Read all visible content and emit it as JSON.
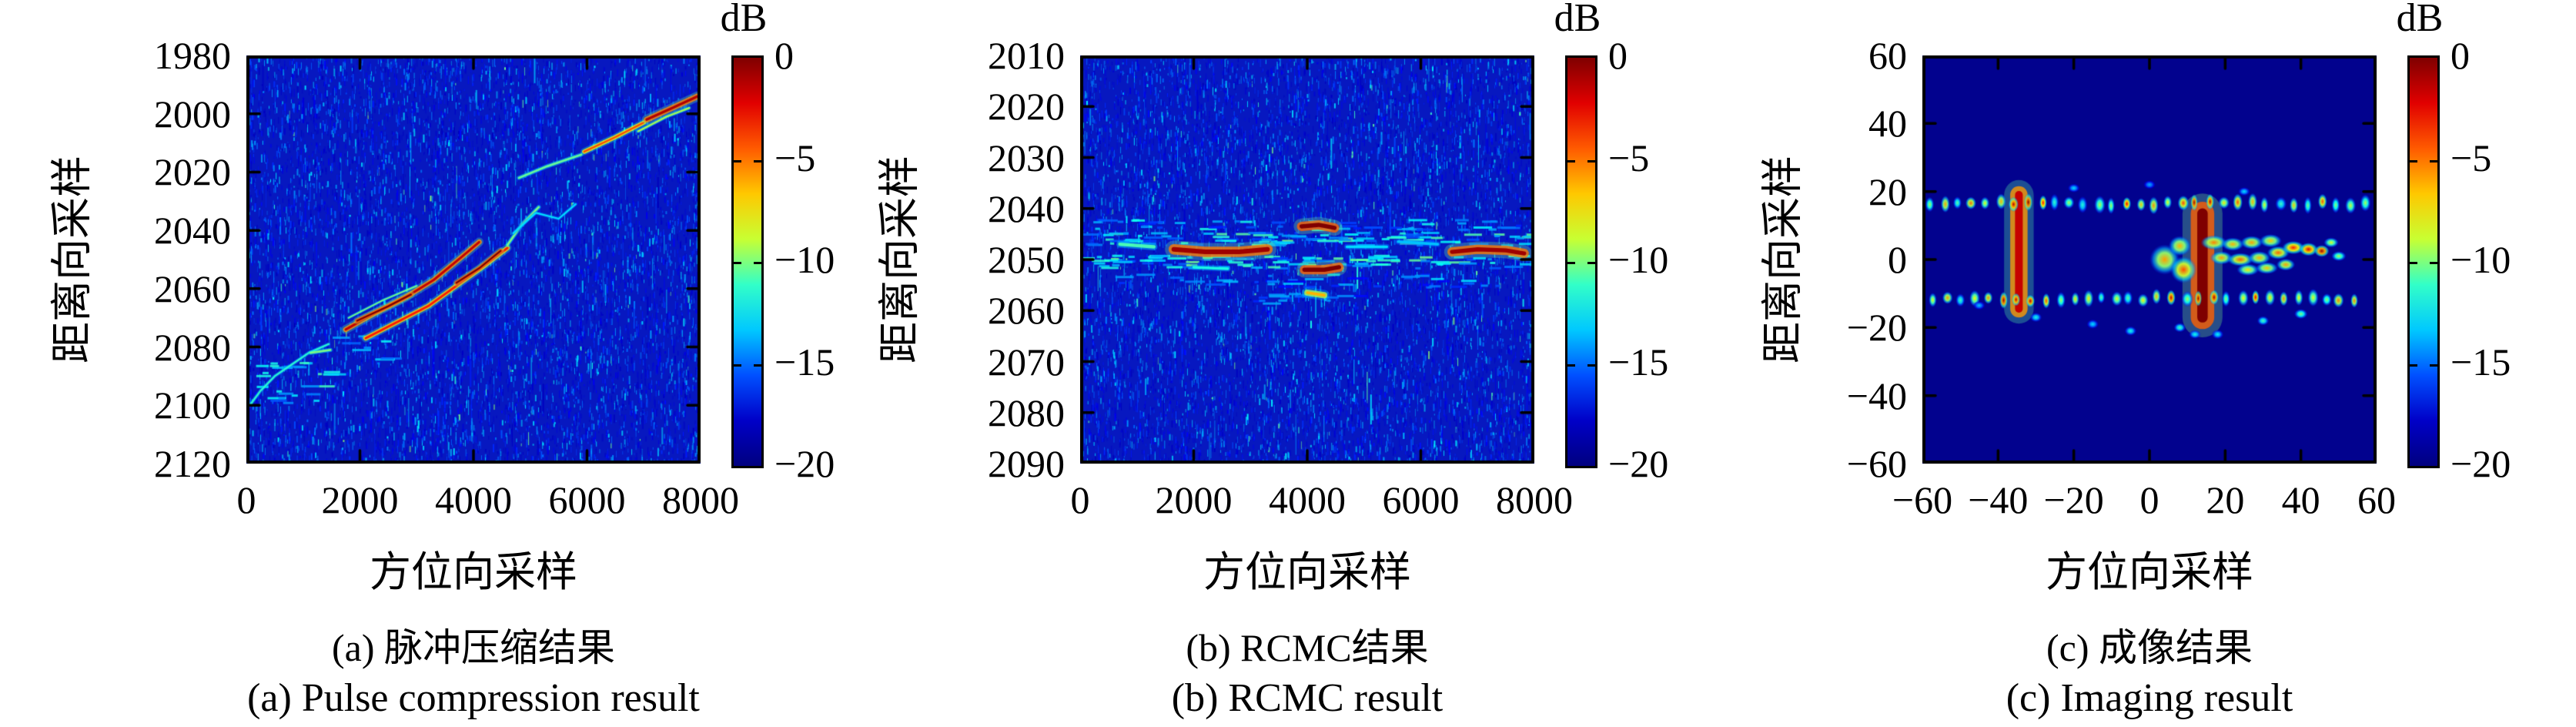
{
  "figure": {
    "type": "sar-processing-results-figure",
    "background": "#ffffff",
    "colorbar": {
      "title": "dB",
      "tick_labels": [
        "0",
        "−5",
        "−10",
        "−15",
        "−20"
      ],
      "range_db": [
        -20,
        0
      ],
      "gradient": [
        "#7f0000",
        "#e10000",
        "#ff5a00",
        "#ffc800",
        "#c8ff32",
        "#32ffc8",
        "#00c8ff",
        "#0050ff",
        "#0000c8",
        "#00007f"
      ]
    }
  },
  "chart_data": [
    {
      "type": "heatmap",
      "panel": "a",
      "title_cn": "(a) 脉冲压缩结果",
      "title_en": "(a) Pulse compression result",
      "xlabel": "方位向采样",
      "ylabel": "距离向采样",
      "x_ticks": [
        0,
        2000,
        4000,
        6000,
        8000
      ],
      "y_ticks": [
        1980,
        2000,
        2020,
        2040,
        2060,
        2080,
        2100,
        2120
      ],
      "x_range": [
        0,
        8000
      ],
      "y_range": [
        1980,
        2120
      ],
      "y_axis_direction": "reversed",
      "colorbar_range_db": [
        -20,
        0
      ],
      "description": "Noisy blue background; bright curved target range-migration trace rising from (≈150, 2103) at bottom-left to (≈7950, 1994) at top-right, with bright red S-shaped wiggle near azimuth 1800-4600 around range 2044-2076 and a bright orange end segment near azimuth 7000-7950.",
      "render": {
        "background": "noise",
        "base_color": "#0718c0",
        "seed": 7,
        "noise_count": 10000,
        "dashes": [
          {
            "seed": 5,
            "n": 26,
            "x0": 60,
            "x1": 1500,
            "y": 2092,
            "yjit": 14,
            "i": [
              0.2,
              0.45
            ],
            "h": 3
          },
          {
            "seed": 6,
            "n": 10,
            "x0": 1500,
            "x1": 2400,
            "y": 2080,
            "yjit": 8,
            "i": [
              0.18,
              0.4
            ],
            "h": 3
          }
        ],
        "streaks": [
          {
            "pts": [
              [
                60,
                2100
              ],
              [
                250,
                2095
              ],
              [
                500,
                2090
              ],
              [
                800,
                2086
              ],
              [
                1100,
                2082
              ],
              [
                1450,
                2079
              ]
            ],
            "w": 2.5,
            "i": 0.42
          },
          {
            "pts": [
              [
                1130,
                2082
              ],
              [
                1480,
                2081
              ]
            ],
            "w": 3,
            "i": 0.5
          },
          {
            "pts": [
              [
                1750,
                2074
              ],
              [
                2300,
                2068
              ],
              [
                2800,
                2063
              ],
              [
                3300,
                2057
              ],
              [
                3800,
                2049
              ],
              [
                4100,
                2044
              ]
            ],
            "w": 5,
            "i": 0.93
          },
          {
            "pts": [
              [
                1950,
                2071
              ],
              [
                2500,
                2066
              ],
              [
                2900,
                2062
              ]
            ],
            "w": 4,
            "i": 1.0
          },
          {
            "pts": [
              [
                2100,
                2077
              ],
              [
                2700,
                2071
              ],
              [
                3200,
                2066
              ],
              [
                3700,
                2059
              ],
              [
                4200,
                2052
              ],
              [
                4600,
                2046
              ]
            ],
            "w": 4.5,
            "i": 0.85
          },
          {
            "pts": [
              [
                3700,
                2058
              ],
              [
                4100,
                2053
              ],
              [
                4480,
                2047
              ]
            ],
            "w": 4,
            "i": 1.0
          },
          {
            "pts": [
              [
                1800,
                2070
              ],
              [
                2400,
                2064
              ],
              [
                3000,
                2059
              ]
            ],
            "w": 2,
            "i": 0.5
          },
          {
            "pts": [
              [
                4600,
                2045
              ],
              [
                4850,
                2038
              ],
              [
                5150,
                2032
              ]
            ],
            "w": 3,
            "i": 0.5
          },
          {
            "pts": [
              [
                4700,
                2041
              ],
              [
                5100,
                2034
              ],
              [
                5500,
                2036
              ],
              [
                5800,
                2031
              ]
            ],
            "w": 2.5,
            "i": 0.35
          },
          {
            "pts": [
              [
                4800,
                2022
              ],
              [
                5300,
                2018
              ],
              [
                5900,
                2014
              ]
            ],
            "w": 3,
            "i": 0.48
          },
          {
            "pts": [
              [
                5950,
                2013
              ],
              [
                6500,
                2008
              ],
              [
                7000,
                2003
              ]
            ],
            "w": 4,
            "i": 0.8
          },
          {
            "pts": [
              [
                7050,
                2002
              ],
              [
                7500,
                1998
              ],
              [
                7950,
                1994
              ]
            ],
            "w": 5.5,
            "i": 0.95
          },
          {
            "pts": [
              [
                6900,
                2006
              ],
              [
                7400,
                2001
              ],
              [
                7800,
                1998
              ]
            ],
            "w": 2.5,
            "i": 0.55
          }
        ]
      }
    },
    {
      "type": "heatmap",
      "panel": "b",
      "title_cn": "(b) RCMC结果",
      "title_en": "(b) RCMC result",
      "xlabel": "方位向采样",
      "ylabel": "距离向采样",
      "x_ticks": [
        0,
        2000,
        4000,
        6000,
        8000
      ],
      "y_ticks": [
        2010,
        2020,
        2030,
        2040,
        2050,
        2060,
        2070,
        2080,
        2090
      ],
      "x_range": [
        0,
        8000
      ],
      "y_range": [
        2010,
        2090
      ],
      "y_axis_direction": "reversed",
      "colorbar_range_db": [
        -20,
        0
      ],
      "description": "Noisy blue background; target energy flattened into a horizontal band around range 2043-2057 with bright red segments near azimuth 1650-3300 (range 2048), a pair near 3900-4560 (ranges 2043.5 and 2052) and 6550-7820 (range 2048.5), plus scattered cyan dashes across the band.",
      "render": {
        "background": "noise",
        "base_color": "#0718c0",
        "seed": 17,
        "noise_count": 10000,
        "dashes": [
          {
            "seed": 11,
            "n": 110,
            "x0": 0,
            "x1": 8000,
            "y": 2045.8,
            "yjit": 2.5,
            "i": [
              0.18,
              0.5
            ],
            "h": 3
          },
          {
            "seed": 12,
            "n": 110,
            "x0": 0,
            "x1": 8000,
            "y": 2050.3,
            "yjit": 2.5,
            "i": [
              0.18,
              0.5
            ],
            "h": 3
          },
          {
            "seed": 13,
            "n": 55,
            "x0": 0,
            "x1": 8000,
            "y": 2043,
            "yjit": 2,
            "i": [
              0.15,
              0.4
            ],
            "h": 3
          },
          {
            "seed": 14,
            "n": 40,
            "x0": 300,
            "x1": 7800,
            "y": 2054,
            "yjit": 2.5,
            "i": [
              0.12,
              0.35
            ],
            "h": 3
          },
          {
            "seed": 15,
            "n": 16,
            "x0": 3000,
            "x1": 5200,
            "y": 2057.5,
            "yjit": 2,
            "i": [
              0.12,
              0.3
            ],
            "h": 3
          }
        ],
        "streaks": [
          {
            "pts": [
              [
                1650,
                2048
              ],
              [
                2200,
                2048.5
              ],
              [
                2800,
                2048.5
              ],
              [
                3300,
                2048
              ]
            ],
            "w": 10,
            "i": 0.97
          },
          {
            "pts": [
              [
                3900,
                2043.5
              ],
              [
                4200,
                2043.2
              ],
              [
                4480,
                2043.8
              ]
            ],
            "w": 9,
            "i": 1.0
          },
          {
            "pts": [
              [
                3950,
                2052
              ],
              [
                4300,
                2052
              ],
              [
                4560,
                2051.5
              ]
            ],
            "w": 9,
            "i": 1.0
          },
          {
            "pts": [
              [
                6550,
                2048.5
              ],
              [
                7000,
                2048
              ],
              [
                7500,
                2048.2
              ],
              [
                7820,
                2048.8
              ]
            ],
            "w": 9,
            "i": 0.97
          },
          {
            "pts": [
              [
                700,
                2047
              ],
              [
                1300,
                2047.5
              ]
            ],
            "w": 5,
            "i": 0.45
          },
          {
            "pts": [
              [
                4700,
                2047.5
              ],
              [
                5400,
                2047.5
              ]
            ],
            "w": 4,
            "i": 0.35
          },
          {
            "pts": [
              [
                5600,
                2046.5
              ],
              [
                6300,
                2047
              ]
            ],
            "w": 4,
            "i": 0.32
          },
          {
            "pts": [
              [
                4000,
                2056.5
              ],
              [
                4300,
                2057
              ]
            ],
            "w": 6,
            "i": 0.7
          },
          {
            "pts": [
              [
                2000,
                2051.5
              ],
              [
                2600,
                2051.8
              ]
            ],
            "w": 4,
            "i": 0.4
          }
        ]
      }
    },
    {
      "type": "heatmap",
      "panel": "c",
      "title_cn": "(c) 成像结果",
      "title_en": "(c) Imaging result",
      "xlabel": "方位向采样",
      "ylabel": "距离向采样",
      "x_ticks": [
        -60,
        -40,
        -20,
        0,
        20,
        40,
        60
      ],
      "y_ticks": [
        60,
        40,
        20,
        0,
        -20,
        -40,
        -60
      ],
      "x_range": [
        -60,
        60
      ],
      "y_range": [
        -60,
        60
      ],
      "y_axis_direction": "normal",
      "colorbar_range_db": [
        -20,
        0
      ],
      "description": "Flat dark-navy background; focused ship-like target: two horizontal rows of periodic sidelobe blobs at range ≈ +16.5 and −11.5 spanning azimuth −58…57, a yellow vertical bar at azimuth ≈ −34.5, a strong red column at azimuth ≈ +14, and a yellow-green hull cluster between azimuth 0 and +50 around range 0.",
      "render": {
        "background": "flat",
        "base_color": "#02028e",
        "rows": [
          {
            "seed": 21,
            "y": 16.5,
            "x0": -58,
            "x1": 57,
            "step": 3.7,
            "rx": 1.25,
            "ry": 2.3,
            "i0": 0.4,
            "i1": 1.0,
            "boost": [
              -35,
              14
            ]
          },
          {
            "seed": 22,
            "y": -11.5,
            "x0": -57,
            "x1": 57,
            "step": 3.7,
            "rx": 1.25,
            "ry": 2.3,
            "i0": 0.4,
            "i1": 1.0,
            "boost": [
              -35,
              14
            ]
          }
        ],
        "bars": [
          {
            "x": -34.5,
            "y0": -14.5,
            "y1": 19,
            "w": 3.4,
            "i": 0.93
          },
          {
            "x": 14,
            "y0": -17,
            "y1": 13.5,
            "w": 4.6,
            "i": 1.0
          }
        ],
        "blobs": [
          [
            4,
            0,
            4,
            4.5,
            0.72
          ],
          [
            9,
            -3,
            3.5,
            4,
            0.8
          ],
          [
            8,
            4,
            3,
            3,
            0.7
          ],
          [
            17,
            5,
            3.5,
            2.2,
            0.75
          ],
          [
            22,
            4.5,
            3,
            2,
            0.7
          ],
          [
            27,
            5,
            3,
            2,
            0.72
          ],
          [
            32,
            5.5,
            3,
            2,
            0.68
          ],
          [
            19,
            0.5,
            3,
            2,
            0.72
          ],
          [
            24,
            0,
            3.5,
            2,
            0.78
          ],
          [
            29,
            0.5,
            3,
            2,
            0.7
          ],
          [
            34,
            2,
            3,
            2,
            0.78
          ],
          [
            38,
            3.5,
            3,
            2,
            0.85
          ],
          [
            42,
            3,
            2.5,
            2,
            0.9
          ],
          [
            45.5,
            2.5,
            2,
            1.8,
            0.97
          ],
          [
            26,
            -3,
            3,
            1.8,
            0.65
          ],
          [
            31,
            -2.5,
            3,
            1.8,
            0.68
          ],
          [
            36,
            -1.5,
            2.5,
            1.8,
            0.72
          ],
          [
            48,
            5,
            2,
            1.5,
            0.6
          ],
          [
            50,
            1,
            2,
            1.5,
            0.55
          ],
          [
            -30,
            -17,
            1.6,
            1.4,
            0.4
          ],
          [
            -15,
            -19,
            1.6,
            1.4,
            0.35
          ],
          [
            -5,
            -21,
            1.6,
            1.4,
            0.4
          ],
          [
            8,
            -20,
            1.6,
            1.4,
            0.45
          ],
          [
            18,
            -22,
            1.6,
            1.4,
            0.38
          ],
          [
            30,
            -18,
            1.6,
            1.4,
            0.45
          ],
          [
            40,
            -16,
            1.8,
            1.5,
            0.5
          ],
          [
            -20,
            21,
            1.6,
            1.3,
            0.35
          ],
          [
            0,
            22,
            1.6,
            1.3,
            0.3
          ],
          [
            25,
            20,
            1.6,
            1.3,
            0.35
          ],
          [
            -45,
            -13.5,
            1.6,
            1.3,
            0.32
          ],
          [
            12,
            -22,
            1.6,
            1.3,
            0.4
          ]
        ]
      }
    }
  ]
}
